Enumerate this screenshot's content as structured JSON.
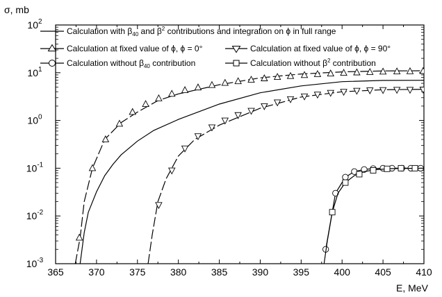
{
  "chart_data": {
    "type": "line",
    "title": "",
    "ylabel": "σ, mb",
    "xlabel": "E, MeV",
    "xlim": [
      365,
      410
    ],
    "ylim": [
      0.001,
      100
    ],
    "y_scale": "log",
    "x_ticks": [
      "365",
      "370",
      "375",
      "380",
      "385",
      "390",
      "395",
      "400",
      "405",
      "410"
    ],
    "y_ticks": [
      {
        "base": "10",
        "exp": "2",
        "value": 100
      },
      {
        "base": "10",
        "exp": "1",
        "value": 10
      },
      {
        "base": "10",
        "exp": "0",
        "value": 1
      },
      {
        "base": "10",
        "exp": "-1",
        "value": 0.1
      },
      {
        "base": "10",
        "exp": "-2",
        "value": 0.01
      },
      {
        "base": "10",
        "exp": "-3",
        "value": 0.001
      }
    ],
    "legend_placement": "top",
    "legend": {
      "full": {
        "p1": "Calculation with ",
        "b40": "β",
        "s40": "40",
        "p2": " and ",
        "b2": "β",
        "s2": "2",
        "p3": " contributions and integration on ",
        "phi": "ϕ",
        "p4": " in full range"
      },
      "phi0": {
        "p1": "Calculation at fixed value of ",
        "phi1": "ϕ",
        ", ": "",
        "p2": ", ",
        "phi2": "ϕ",
        "p3": " = 0°"
      },
      "phi90": {
        "p1": "Calculation at fixed value of ",
        "phi1": "ϕ",
        "p2": ", ",
        "phi2": "ϕ",
        "p3": " = 90°"
      },
      "no_b40": {
        "p1": "Calculation without ",
        "b": "β",
        "s": "40",
        "p2": " contribution"
      },
      "no_b2": {
        "p1": "Calculation without ",
        "b": "β",
        "s": "2",
        "p2": " contribution"
      }
    },
    "series": [
      {
        "id": "full",
        "style": "solid",
        "marker": "none",
        "color": "#000000",
        "x": [
          368.0,
          368.5,
          369.0,
          370.0,
          371.0,
          372.0,
          373.0,
          375.0,
          377.0,
          380.0,
          385.0,
          390.0,
          395.0,
          400.0,
          405.0,
          410.0
        ],
        "y": [
          0.001,
          0.0045,
          0.012,
          0.032,
          0.07,
          0.12,
          0.19,
          0.37,
          0.62,
          1.05,
          2.2,
          3.8,
          5.3,
          6.5,
          6.9,
          6.95
        ]
      },
      {
        "id": "phi0",
        "style": "dashed",
        "marker": "triangle-up",
        "color": "#000000",
        "line_x": [
          367.4,
          368.0,
          368.5,
          369.5,
          371.0,
          373.0,
          375.0,
          377.5,
          380.0,
          385.0,
          390.0,
          395.0,
          400.0,
          405.0,
          410.0
        ],
        "line_y": [
          0.001,
          0.0035,
          0.02,
          0.1,
          0.4,
          0.9,
          1.5,
          2.6,
          3.6,
          5.6,
          7.8,
          9.4,
          10.4,
          10.9,
          11.0
        ],
        "x": [
          367.9,
          369.5,
          371.1,
          372.8,
          374.4,
          376.0,
          377.6,
          379.2,
          380.8,
          382.4,
          384.1,
          385.7,
          387.3,
          388.9,
          390.5,
          392.1,
          393.7,
          395.4,
          397.0,
          398.6,
          400.2,
          401.8,
          403.4,
          405.0,
          406.7,
          408.3,
          409.9
        ],
        "y": [
          0.0035,
          0.1,
          0.4,
          0.85,
          1.5,
          2.2,
          2.9,
          3.6,
          4.3,
          4.9,
          5.5,
          6.1,
          6.6,
          7.1,
          7.6,
          8.1,
          8.5,
          8.9,
          9.3,
          9.6,
          9.9,
          10.1,
          10.3,
          10.5,
          10.6,
          10.7,
          10.8
        ]
      },
      {
        "id": "phi90",
        "style": "dashed",
        "marker": "triangle-down",
        "color": "#000000",
        "line_x": [
          376.3,
          376.8,
          377.5,
          378.5,
          380.0,
          382.0,
          385.0,
          390.0,
          395.0,
          400.0,
          405.0,
          410.0
        ],
        "line_y": [
          0.001,
          0.004,
          0.02,
          0.06,
          0.18,
          0.4,
          0.8,
          1.8,
          3.1,
          4.0,
          4.4,
          4.5
        ],
        "x": [
          377.6,
          379.2,
          380.8,
          382.4,
          384.1,
          385.7,
          387.3,
          388.9,
          390.5,
          392.1,
          393.7,
          395.4,
          397.0,
          398.6,
          400.2,
          401.8,
          403.4,
          405.0,
          406.7,
          408.3,
          409.9
        ],
        "y": [
          0.017,
          0.09,
          0.26,
          0.47,
          0.72,
          1.0,
          1.3,
          1.6,
          2.0,
          2.4,
          2.8,
          3.2,
          3.5,
          3.8,
          4.0,
          4.2,
          4.3,
          4.35,
          4.4,
          4.4,
          4.45
        ]
      },
      {
        "id": "no_b40",
        "style": "solid",
        "marker": "circle",
        "color": "#000000",
        "x": [
          398.0,
          399.2,
          400.4,
          401.5,
          402.7,
          403.8,
          405.0,
          406.1,
          407.3,
          408.4,
          409.6
        ],
        "y": [
          0.002,
          0.03,
          0.065,
          0.085,
          0.094,
          0.098,
          0.1,
          0.1,
          0.1,
          0.1,
          0.1
        ]
      },
      {
        "id": "no_b2",
        "style": "solid",
        "marker": "square",
        "color": "#000000",
        "line_x": [
          397.8,
          398.2,
          398.8,
          399.5,
          400.4,
          401.5,
          402.7,
          404.0,
          406.0,
          410.0
        ],
        "line_y": [
          0.001,
          0.003,
          0.012,
          0.03,
          0.05,
          0.07,
          0.085,
          0.093,
          0.098,
          0.1
        ],
        "x": [
          398.8,
          400.4,
          402.1,
          403.8,
          405.5,
          407.2,
          408.9
        ],
        "y": [
          0.012,
          0.05,
          0.075,
          0.09,
          0.097,
          0.1,
          0.1
        ]
      }
    ]
  }
}
